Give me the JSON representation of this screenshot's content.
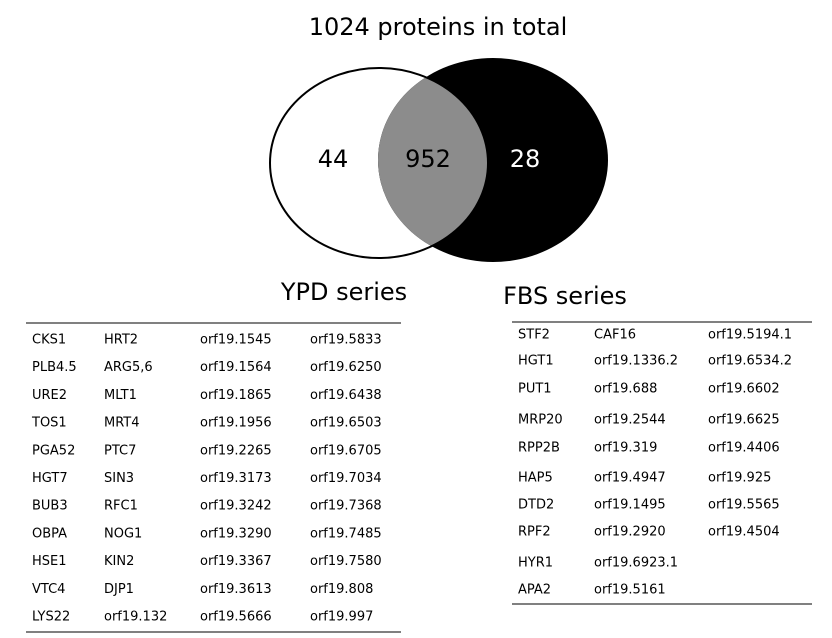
{
  "venn": {
    "title": "1024 proteins in total",
    "left_only": "44",
    "both": "952",
    "right_only": "28"
  },
  "ypd": {
    "title": "YPD series",
    "rows": [
      [
        "CKS1",
        "HRT2",
        "orf19.1545",
        "orf19.5833"
      ],
      [
        "PLB4.5",
        "ARG5,6",
        "orf19.1564",
        "orf19.6250"
      ],
      [
        "URE2",
        "MLT1",
        "orf19.1865",
        "orf19.6438"
      ],
      [
        "TOS1",
        "MRT4",
        "orf19.1956",
        "orf19.6503"
      ],
      [
        "PGA52",
        "PTC7",
        "orf19.2265",
        "orf19.6705"
      ],
      [
        "HGT7",
        "SIN3",
        "orf19.3173",
        "orf19.7034"
      ],
      [
        "BUB3",
        "RFC1",
        "orf19.3242",
        "orf19.7368"
      ],
      [
        "OBPA",
        "NOG1",
        "orf19.3290",
        "orf19.7485"
      ],
      [
        "HSE1",
        "KIN2",
        "orf19.3367",
        "orf19.7580"
      ],
      [
        "VTC4",
        "DJP1",
        "orf19.3613",
        "orf19.808"
      ],
      [
        "LYS22",
        "orf19.132",
        "orf19.5666",
        "orf19.997"
      ]
    ]
  },
  "fbs": {
    "title": "FBS series",
    "rows": [
      [
        "STF2",
        "CAF16",
        "orf19.5194.1"
      ],
      [
        "HGT1",
        "orf19.1336.2",
        "orf19.6534.2"
      ],
      [
        "PUT1",
        "orf19.688",
        "orf19.6602"
      ],
      [
        "MRP20",
        "orf19.2544",
        "orf19.6625"
      ],
      [
        "RPP2B",
        "orf19.319",
        "orf19.4406"
      ],
      [
        "HAP5",
        "orf19.4947",
        "orf19.925"
      ],
      [
        "DTD2",
        "orf19.1495",
        "orf19.5565"
      ],
      [
        "RPF2",
        "orf19.2920",
        "orf19.4504"
      ],
      [
        "HYR1",
        "orf19.6923.1"
      ],
      [
        "APA2",
        "orf19.5161"
      ]
    ]
  }
}
